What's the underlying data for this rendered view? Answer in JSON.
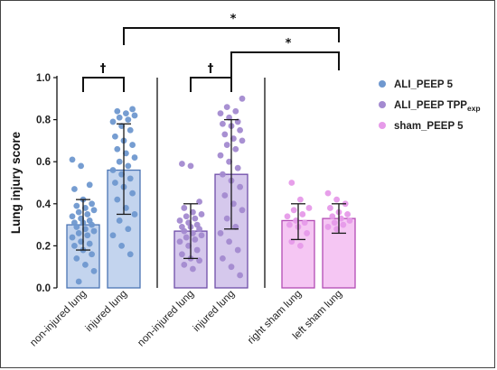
{
  "chart_data": {
    "type": "bar",
    "ylabel": "Lung injury score",
    "ylim": [
      0,
      1.0
    ],
    "yticks": [
      "0.0",
      "0.2",
      "0.4",
      "0.6",
      "0.8",
      "1.0"
    ],
    "legend_position": "right",
    "categories": [
      "non-injured lung",
      "injured lung",
      "non-injured lung",
      "injured lung",
      "right sham lung",
      "left sham lung"
    ],
    "series": [
      {
        "name": "ALI_PEEP 5",
        "name_sub": "",
        "color": "#6f98cf",
        "fill": "#c3d4ee",
        "stroke": "#4a74b4",
        "bars": [
          {
            "category_index": 0,
            "mean": 0.3,
            "sd_low": 0.18,
            "sd_high": 0.42,
            "points": [
              0.61,
              0.58,
              0.49,
              0.47,
              0.42,
              0.4,
              0.39,
              0.38,
              0.37,
              0.36,
              0.35,
              0.34,
              0.33,
              0.32,
              0.31,
              0.31,
              0.3,
              0.29,
              0.28,
              0.27,
              0.26,
              0.25,
              0.24,
              0.22,
              0.21,
              0.2,
              0.18,
              0.16,
              0.14,
              0.11,
              0.08,
              0.03
            ]
          },
          {
            "category_index": 1,
            "mean": 0.56,
            "sd_low": 0.35,
            "sd_high": 0.78,
            "points": [
              0.85,
              0.84,
              0.83,
              0.82,
              0.81,
              0.8,
              0.79,
              0.77,
              0.75,
              0.72,
              0.7,
              0.68,
              0.66,
              0.64,
              0.62,
              0.6,
              0.58,
              0.56,
              0.54,
              0.52,
              0.5,
              0.48,
              0.45,
              0.42,
              0.38,
              0.35,
              0.32,
              0.28,
              0.25,
              0.2,
              0.16
            ]
          }
        ]
      },
      {
        "name": "ALI_PEEP TPP",
        "name_sub": "exp",
        "color": "#a38ad0",
        "fill": "#d5c8ec",
        "stroke": "#6e4da8",
        "bars": [
          {
            "category_index": 2,
            "mean": 0.27,
            "sd_low": 0.14,
            "sd_high": 0.4,
            "points": [
              0.59,
              0.58,
              0.41,
              0.38,
              0.36,
              0.35,
              0.34,
              0.33,
              0.32,
              0.31,
              0.3,
              0.29,
              0.29,
              0.28,
              0.27,
              0.26,
              0.25,
              0.24,
              0.23,
              0.22,
              0.2,
              0.18,
              0.16,
              0.14,
              0.13,
              0.11,
              0.09
            ]
          },
          {
            "category_index": 3,
            "mean": 0.54,
            "sd_low": 0.28,
            "sd_high": 0.8,
            "points": [
              0.9,
              0.86,
              0.84,
              0.83,
              0.81,
              0.79,
              0.78,
              0.77,
              0.75,
              0.73,
              0.71,
              0.7,
              0.68,
              0.66,
              0.63,
              0.6,
              0.57,
              0.54,
              0.51,
              0.48,
              0.44,
              0.4,
              0.37,
              0.33,
              0.29,
              0.26,
              0.22,
              0.18,
              0.14,
              0.1,
              0.06
            ]
          }
        ]
      },
      {
        "name": "sham_PEEP 5",
        "name_sub": "",
        "color": "#e69ae9",
        "fill": "#f5c6f3",
        "stroke": "#b24cb4",
        "bars": [
          {
            "category_index": 4,
            "mean": 0.32,
            "sd_low": 0.23,
            "sd_high": 0.4,
            "points": [
              0.5,
              0.42,
              0.38,
              0.37,
              0.35,
              0.34,
              0.32,
              0.31,
              0.3,
              0.29,
              0.26,
              0.22,
              0.2
            ]
          },
          {
            "category_index": 5,
            "mean": 0.33,
            "sd_low": 0.26,
            "sd_high": 0.4,
            "points": [
              0.45,
              0.42,
              0.4,
              0.38,
              0.36,
              0.35,
              0.34,
              0.33,
              0.32,
              0.31,
              0.3,
              0.29,
              0.28
            ]
          }
        ]
      }
    ],
    "significance": [
      {
        "from": 0,
        "to": 1,
        "label": "†"
      },
      {
        "from": 2,
        "to": 3,
        "label": "†"
      },
      {
        "from": 1,
        "to": 5,
        "label": "*"
      },
      {
        "from": 3,
        "to": 5,
        "label": "*"
      }
    ]
  }
}
